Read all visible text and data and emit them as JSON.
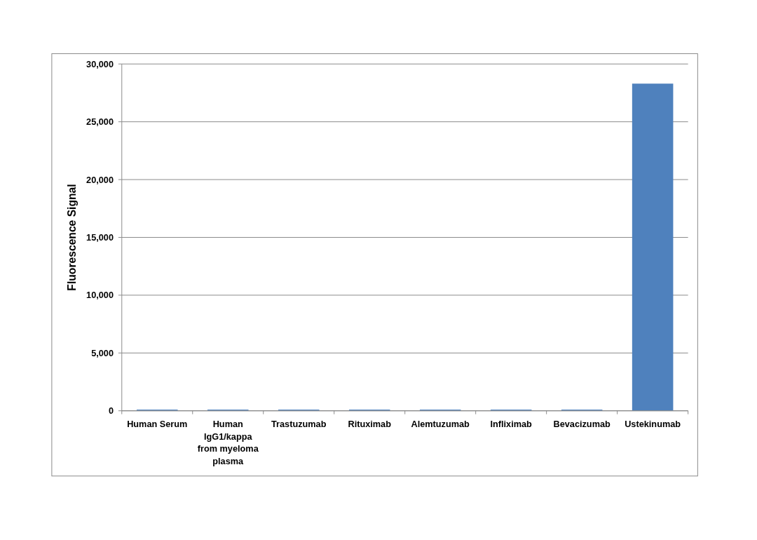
{
  "chart_data": {
    "type": "bar",
    "ylabel": "Fluorescence Signal",
    "categories": [
      "Human Serum",
      "Human IgG1/kappa from myeloma plasma",
      "Trastuzumab",
      "Rituximab",
      "Alemtuzumab",
      "Infliximab",
      "Bevacizumab",
      "Ustekinumab"
    ],
    "values": [
      100,
      100,
      100,
      100,
      100,
      100,
      100,
      28300
    ],
    "color": "#4f81bd",
    "ylim": [
      0,
      30000
    ],
    "yticks": [
      {
        "value": 0,
        "label": "0"
      },
      {
        "value": 5000,
        "label": "5,000"
      },
      {
        "value": 10000,
        "label": "10,000"
      },
      {
        "value": 15000,
        "label": "15,000"
      },
      {
        "value": 20000,
        "label": "20,000"
      },
      {
        "value": 25000,
        "label": "25,000"
      },
      {
        "value": 30000,
        "label": "30,000"
      }
    ],
    "grid": "y"
  }
}
